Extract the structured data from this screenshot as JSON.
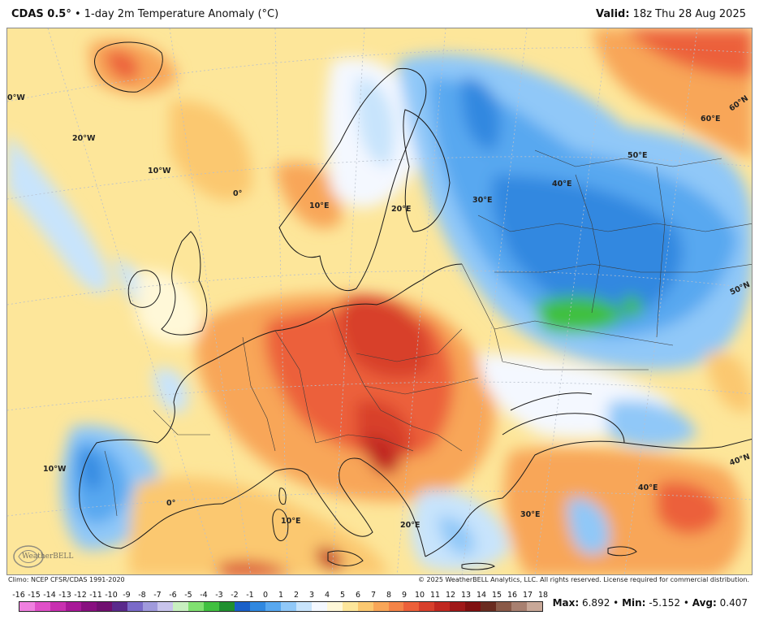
{
  "header": {
    "model": "CDAS 0.5",
    "model_degree": "°",
    "separator": "•",
    "subtitle": "1-day 2m Temperature Anomaly (°C)",
    "valid_label": "Valid:",
    "valid_time": "18z Thu 28 Aug 2025"
  },
  "footer": {
    "climo": "Climo: NCEP CFSR/CDAS 1991-2020",
    "copyright": "© 2025 WeatherBELL Analytics, LLC. All rights reserved. License required for commercial distribution.",
    "max_label": "Max:",
    "max_value": "6.892",
    "min_label": "Min:",
    "min_value": "-5.152",
    "avg_label": "Avg:",
    "avg_value": "0.407",
    "dot": "•"
  },
  "logo": {
    "text": "WeatherBELL"
  },
  "colorbar": {
    "ticks": [
      "-16",
      "-15",
      "-14",
      "-13",
      "-12",
      "-11",
      "-10",
      "-9",
      "-8",
      "-7",
      "-6",
      "-5",
      "-4",
      "-3",
      "-2",
      "-1",
      "0",
      "1",
      "2",
      "3",
      "4",
      "5",
      "6",
      "7",
      "8",
      "9",
      "10",
      "11",
      "12",
      "13",
      "14",
      "15",
      "16",
      "17",
      "18"
    ],
    "colors": [
      "#f080e0",
      "#e050c8",
      "#c830b0",
      "#a81898",
      "#881080",
      "#701070",
      "#5a2a8c",
      "#7a6ac8",
      "#a09adc",
      "#c8c4ec",
      "#c8f0c0",
      "#80e070",
      "#40c040",
      "#209030",
      "#1a60c8",
      "#3088e0",
      "#58a8f0",
      "#90c8f8",
      "#c8e4fc",
      "#f4f8ff",
      "#fff8d8",
      "#fde69a",
      "#fbc870",
      "#f8a658",
      "#f48448",
      "#ec603a",
      "#d8402c",
      "#c02820",
      "#a01818",
      "#801010",
      "#6a2c20",
      "#8a5a48",
      "#a88070",
      "#c8a898"
    ]
  },
  "map_labels": {
    "lon_0w_top": "0°W",
    "lon_20w": "20°W",
    "lon_10w_top": "10°W",
    "lon_0_mid": "0°",
    "lon_10e_top": "10°E",
    "lon_20e_top": "20°E",
    "lon_30e_top": "30°E",
    "lon_40e_top": "40°E",
    "lon_50e": "50°E",
    "lon_60e": "60°E",
    "lat_60n": "60°N",
    "lat_50n": "50°N",
    "lat_40n": "40°N",
    "lon_10w_bottom": "10°W",
    "lon_0_bottom": "0°",
    "lon_10e_bottom": "10°E",
    "lon_20e_bottom": "20°E",
    "lon_30e_bottom": "30°E",
    "lon_40e_bottom": "40°E"
  }
}
